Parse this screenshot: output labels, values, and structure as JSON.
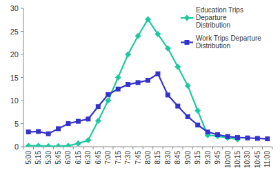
{
  "chart_data": {
    "type": "line",
    "categories": [
      "5:00",
      "5:15",
      "5:30",
      "5:45",
      "6:00",
      "6:15",
      "6:30",
      "6:45",
      "7:00",
      "7:15",
      "7:30",
      "7:45",
      "8:00",
      "8:15",
      "8:30",
      "8:45",
      "9:00",
      "9:15",
      "9:30",
      "9:45",
      "10:00",
      "10:15",
      "10:30",
      "10:45",
      "11:00"
    ],
    "series": [
      {
        "name": "Education Trips Departure Distribution",
        "color": "#1fc99f",
        "marker": "diamond",
        "values": [
          0.2,
          0.2,
          0.1,
          0.1,
          0.2,
          0.7,
          1.4,
          5.6,
          10,
          15,
          20,
          24,
          27.6,
          24.4,
          21.3,
          17.3,
          13.2,
          7.8,
          2.5,
          2.3,
          1.9,
          1.6,
          null,
          null,
          null
        ]
      },
      {
        "name": "Work Trips Departure Distribution",
        "color": "#3333cc",
        "marker": "square",
        "values": [
          3.2,
          3.3,
          2.8,
          3.9,
          5.0,
          5.5,
          6.0,
          8.7,
          11.3,
          12.5,
          13.5,
          13.9,
          14.4,
          15.8,
          11.2,
          8.8,
          6.5,
          4.7,
          3.2,
          2.6,
          2.2,
          2.0,
          1.9,
          1.8,
          1.7
        ]
      }
    ],
    "ylim": [
      0,
      30
    ],
    "yticks": [
      0,
      5,
      10,
      15,
      20,
      25,
      30
    ],
    "grid": false,
    "legend": "upper right"
  }
}
